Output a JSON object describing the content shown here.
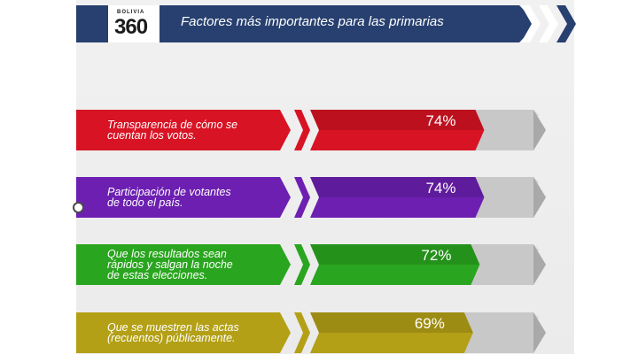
{
  "header": {
    "title": "Factores más importantes para las primarias",
    "logo_small": "BOLIVIA",
    "logo_big": "360"
  },
  "colors": {
    "header_bg": "#27406f",
    "remainder": "#c8c8c8",
    "red": "#d81324",
    "purple": "#6c1fb1",
    "green": "#2aa51f",
    "olive": "#b3a016"
  },
  "chart_data": {
    "type": "bar",
    "title": "Factores más importantes para las primarias",
    "orientation": "horizontal",
    "value_unit": "%",
    "xlim": [
      0,
      100
    ],
    "categories": [
      "Transparencia de cómo se cuentan los votos.",
      "Participación de votantes de todo el país.",
      "Que los resultados sean rápidos y salgan la noche de estas elecciones.",
      "Que se muestren las actas (recuentos) públicamente."
    ],
    "values": [
      74,
      74,
      72,
      69
    ],
    "value_labels": [
      "74%",
      "74%",
      "72%",
      "69%"
    ],
    "label_lines": [
      [
        "Transparencia de cómo se",
        "cuentan los votos."
      ],
      [
        "Participación de votantes",
        "de todo el país."
      ],
      [
        "Que los resultados sean",
        "rápidos y salgan la noche",
        "de estas elecciones."
      ],
      [
        "Que se muestren las actas",
        "(recuentos) públicamente."
      ]
    ],
    "bar_colors": [
      "#d81324",
      "#6c1fb1",
      "#2aa51f",
      "#b3a016"
    ],
    "grid": false,
    "legend": "none"
  }
}
